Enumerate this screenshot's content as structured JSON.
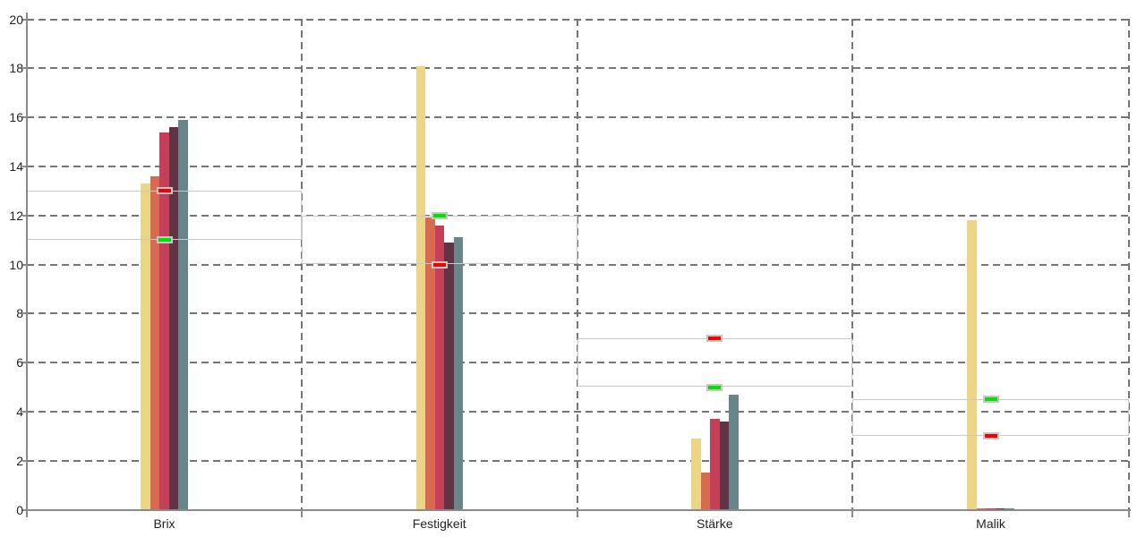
{
  "chart_data": {
    "type": "bar",
    "title": "",
    "xlabel": "",
    "ylabel": "",
    "legend": "none",
    "ylim": [
      0,
      20
    ],
    "y_ticks": [
      0,
      2,
      4,
      6,
      8,
      10,
      12,
      14,
      16,
      18,
      20
    ],
    "grid": {
      "horizontal": "dashed",
      "vertical_category_separators": "dashed"
    },
    "categories": [
      "Brix",
      "Festigkeit",
      "Stärke",
      "Malik"
    ],
    "series": [
      {
        "color": "#ecd584",
        "values": [
          13.3,
          18.1,
          2.9,
          11.8
        ]
      },
      {
        "color": "#d96a52",
        "values": [
          13.6,
          11.9,
          1.5,
          0.05
        ]
      },
      {
        "color": "#c53f58",
        "values": [
          15.4,
          11.6,
          3.7,
          0.05
        ]
      },
      {
        "color": "#613445",
        "values": [
          15.6,
          10.9,
          3.6,
          0.05
        ]
      },
      {
        "color": "#688689",
        "values": [
          15.9,
          11.1,
          4.7,
          0.05
        ]
      }
    ],
    "reference_bands": [
      {
        "category": "Brix",
        "low": 11,
        "high": 13
      },
      {
        "category": "Festigkeit",
        "low": 10,
        "high": 12
      },
      {
        "category": "Stärke",
        "low": 5,
        "high": 7
      },
      {
        "category": "Malik",
        "low": 3,
        "high": 4.5
      }
    ],
    "limit_markers": [
      {
        "category": "Brix",
        "value": 13,
        "color": "#f40000"
      },
      {
        "category": "Brix",
        "value": 11,
        "color": "#00e100"
      },
      {
        "category": "Festigkeit",
        "value": 12,
        "color": "#00e100"
      },
      {
        "category": "Festigkeit",
        "value": 10,
        "color": "#f40000"
      },
      {
        "category": "Stärke",
        "value": 7,
        "color": "#f40000"
      },
      {
        "category": "Stärke",
        "value": 5,
        "color": "#00e100"
      },
      {
        "category": "Malik",
        "value": 4.5,
        "color": "#00e100"
      },
      {
        "category": "Malik",
        "value": 3,
        "color": "#f40000"
      }
    ],
    "style_colors": {
      "grid": "#757575",
      "axis": "#8a8a8a",
      "band_border": "#c9c9c9",
      "marker_border": "#c6c6c6",
      "text": "#222222",
      "background": "#ffffff"
    }
  }
}
